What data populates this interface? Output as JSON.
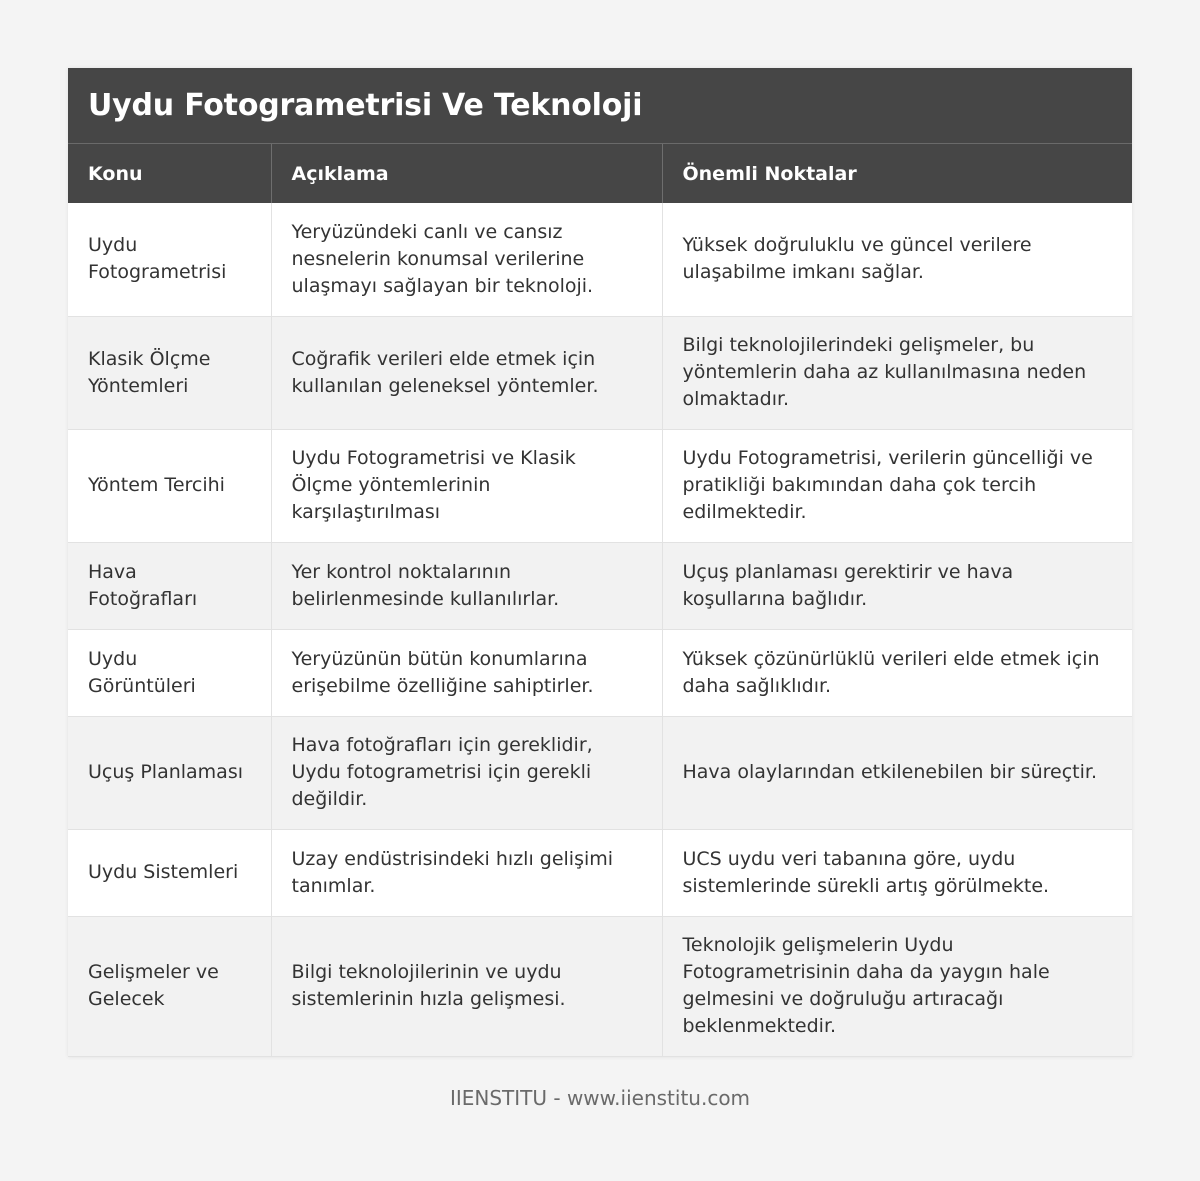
{
  "title": "Uydu Fotogrametrisi Ve Teknoloji",
  "headers": [
    "Konu",
    "Açıklama",
    "Önemli Noktalar"
  ],
  "rows": [
    [
      "Uydu Fotogrametrisi",
      "Yeryüzündeki canlı ve cansız nesnelerin konumsal verilerine ulaşmayı sağlayan bir teknoloji.",
      "Yüksek doğruluklu ve güncel verilere ulaşabilme imkanı sağlar."
    ],
    [
      "Klasik Ölçme Yöntemleri",
      "Coğrafik verileri elde etmek için kullanılan geleneksel yöntemler.",
      "Bilgi teknolojilerindeki gelişmeler, bu yöntemlerin daha az kullanılmasına neden olmaktadır."
    ],
    [
      "Yöntem Tercihi",
      "Uydu Fotogrametrisi ve Klasik Ölçme yöntemlerinin karşılaştırılması",
      "Uydu Fotogrametrisi, verilerin güncelliği ve pratikliği bakımından daha çok tercih edilmektedir."
    ],
    [
      "Hava Fotoğrafları",
      "Yer kontrol noktalarının belirlenmesinde kullanılırlar.",
      "Uçuş planlaması gerektirir ve hava koşullarına bağlıdır."
    ],
    [
      "Uydu Görüntüleri",
      "Yeryüzünün bütün konumlarına erişebilme özelliğine sahiptirler.",
      "Yüksek çözünürlüklü verileri elde etmek için daha sağlıklıdır."
    ],
    [
      "Uçuş Planlaması",
      "Hava fotoğrafları için gereklidir, Uydu fotogrametrisi için gerekli değildir.",
      "Hava olaylarından etkilenebilen bir süreçtir."
    ],
    [
      "Uydu Sistemleri",
      "Uzay endüstrisindeki hızlı gelişimi tanımlar.",
      "UCS uydu veri tabanına göre, uydu sistemlerinde sürekli artış görülmekte."
    ],
    [
      "Gelişmeler ve Gelecek",
      "Bilgi teknolojilerinin ve uydu sistemlerinin hızla gelişmesi.",
      "Teknolojik gelişmelerin Uydu Fotogrametrisinin daha da yaygın hale gelmesini ve doğruluğu artıracağı beklenmektedir."
    ]
  ],
  "footer": "IIENSTITU - www.iienstitu.com",
  "colors": {
    "header_bg": "#464646",
    "header_text": "#ffffff",
    "row_alt_bg": "#f2f2f2",
    "page_bg": "#f4f4f4"
  }
}
